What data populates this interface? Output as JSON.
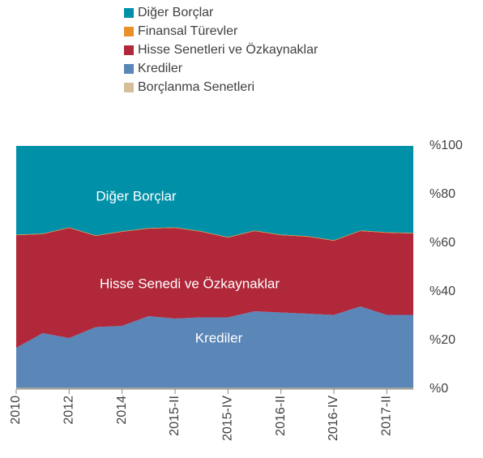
{
  "chart_data": {
    "type": "stacked_area",
    "categories": [
      "2010",
      null,
      "2012",
      null,
      "2014",
      null,
      "2015-II",
      null,
      "2015-IV",
      null,
      "2016-II",
      null,
      "2016-IV",
      null,
      "2017-II",
      null
    ],
    "series": [
      {
        "name": "Diğer Borçlar",
        "color": "#0090a8",
        "values": [
          36.5,
          36.1,
          33.5,
          36.8,
          35.1,
          33.8,
          33.5,
          35.1,
          37.5,
          34.8,
          36.5,
          37.1,
          38.8,
          34.8,
          35.5,
          35.8
        ]
      },
      {
        "name": "Finansal Türevler",
        "color": "#e8902a",
        "values": [
          0.2,
          0.2,
          0.2,
          0.2,
          0.2,
          0.2,
          0.2,
          0.2,
          0.2,
          0.2,
          0.2,
          0.2,
          0.2,
          0.2,
          0.2,
          0.2
        ]
      },
      {
        "name": "Hisse Senetleri ve Özkaynaklar",
        "color": "#b0283a",
        "values": [
          46.3,
          40.7,
          45.3,
          37.5,
          38.7,
          36,
          37.3,
          35.2,
          32.8,
          33,
          31.8,
          31.7,
          30.5,
          31,
          33.8,
          33.5
        ]
      },
      {
        "name": "Krediler",
        "color": "#5b86b8",
        "values": [
          16.5,
          22.5,
          20.5,
          25,
          25.5,
          29.5,
          28.5,
          29,
          29,
          31.5,
          31,
          30.5,
          30,
          33.5,
          30,
          30
        ]
      },
      {
        "name": "Borçlanma Senetleri",
        "color": "#d4bf9a",
        "values": [
          0.5,
          0.5,
          0.5,
          0.5,
          0.5,
          0.5,
          0.5,
          0.5,
          0.5,
          0.5,
          0.5,
          0.5,
          0.5,
          0.5,
          0.5,
          0.5
        ]
      }
    ],
    "annotations": [
      "Diğer Borçlar",
      "Hisse Senedi ve Özkaynaklar",
      "Krediler"
    ],
    "ylim": [
      0,
      100
    ],
    "yticks": [
      {
        "value": 0,
        "label": "%0"
      },
      {
        "value": 20,
        "label": "%20"
      },
      {
        "value": 40,
        "label": "%40"
      },
      {
        "value": 60,
        "label": "%60"
      },
      {
        "value": 80,
        "label": "%80"
      },
      {
        "value": 100,
        "label": "%100"
      }
    ]
  }
}
